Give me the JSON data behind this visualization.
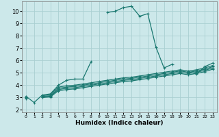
{
  "xlabel": "Humidex (Indice chaleur)",
  "bg_color": "#cce8ea",
  "grid_color": "#aacfd2",
  "line_color": "#1a7870",
  "xlim": [
    -0.5,
    23.5
  ],
  "ylim": [
    1.8,
    10.8
  ],
  "xticks": [
    0,
    1,
    2,
    3,
    4,
    5,
    6,
    7,
    8,
    9,
    10,
    11,
    12,
    13,
    14,
    15,
    16,
    17,
    18,
    19,
    20,
    21,
    22,
    23
  ],
  "yticks": [
    2,
    3,
    4,
    5,
    6,
    7,
    8,
    9,
    10
  ],
  "series": [
    [
      3.1,
      2.6,
      3.2,
      3.3,
      4.0,
      4.4,
      4.5,
      4.5,
      5.9,
      null,
      9.9,
      10.0,
      10.3,
      10.4,
      9.6,
      9.8,
      7.1,
      5.4,
      5.7,
      null,
      5.1,
      4.9,
      5.5,
      5.8
    ],
    [
      3.05,
      null,
      3.15,
      3.25,
      3.85,
      3.95,
      4.0,
      4.1,
      4.2,
      4.3,
      4.4,
      4.5,
      4.6,
      4.65,
      4.75,
      4.85,
      4.95,
      5.05,
      5.15,
      5.25,
      5.15,
      5.25,
      5.4,
      5.6
    ],
    [
      3.0,
      null,
      3.1,
      3.15,
      3.75,
      3.85,
      3.9,
      4.0,
      4.1,
      4.2,
      4.3,
      4.4,
      4.5,
      4.55,
      4.65,
      4.75,
      4.85,
      4.95,
      5.05,
      5.15,
      5.05,
      5.15,
      5.3,
      5.5
    ],
    [
      2.95,
      null,
      3.05,
      3.1,
      3.65,
      3.75,
      3.8,
      3.9,
      4.0,
      4.1,
      4.2,
      4.3,
      4.4,
      4.45,
      4.55,
      4.65,
      4.75,
      4.85,
      4.95,
      5.05,
      4.95,
      5.05,
      5.2,
      5.4
    ],
    [
      2.9,
      null,
      3.0,
      3.05,
      3.55,
      3.65,
      3.7,
      3.8,
      3.9,
      4.0,
      4.1,
      4.2,
      4.3,
      4.35,
      4.45,
      4.55,
      4.65,
      4.75,
      4.85,
      4.95,
      4.85,
      4.95,
      5.1,
      5.3
    ]
  ]
}
